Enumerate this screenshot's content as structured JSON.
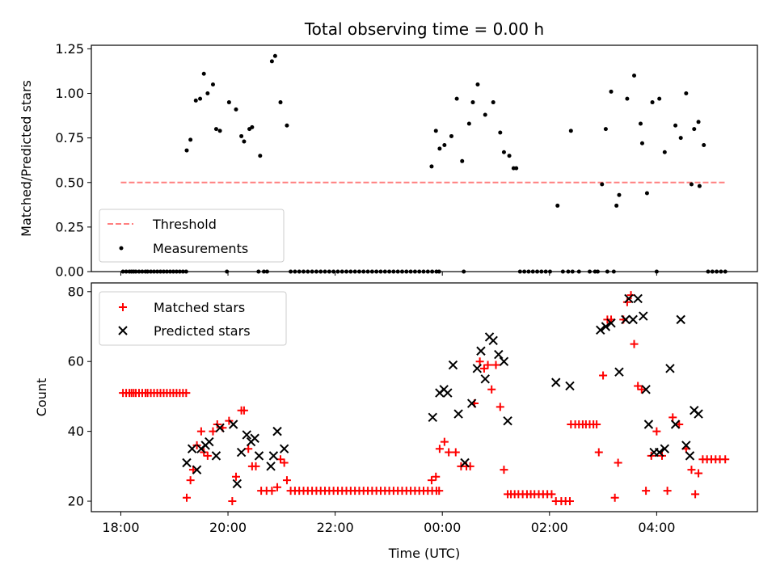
{
  "title": "Total observing time = 0.00 h",
  "shared_x": {
    "label": "Time (UTC)",
    "min_hours": -0.55,
    "max_hours": 11.88,
    "ticks": [
      {
        "hours": 0,
        "label": "18:00"
      },
      {
        "hours": 2,
        "label": "20:00"
      },
      {
        "hours": 4,
        "label": "22:00"
      },
      {
        "hours": 6,
        "label": "00:00"
      },
      {
        "hours": 8,
        "label": "02:00"
      },
      {
        "hours": 10,
        "label": "04:00"
      }
    ]
  },
  "chart_data": [
    {
      "type": "scatter",
      "ylabel": "Matched/Predicted stars",
      "ylim": [
        0,
        1.27
      ],
      "yticks": [
        0.0,
        0.25,
        0.5,
        0.75,
        1.0,
        1.25
      ],
      "ytick_labels": [
        "0.00",
        "0.25",
        "0.50",
        "0.75",
        "1.00",
        "1.25"
      ],
      "legend_position": "lower-left",
      "threshold": {
        "name": "Threshold",
        "value": 0.5,
        "x_range": [
          0,
          11.3
        ],
        "color": "#ff7f7f"
      },
      "series": [
        {
          "name": "Measurements",
          "color": "#000000",
          "marker": "dot",
          "x": [
            0.04,
            0.1,
            0.16,
            0.2,
            0.24,
            0.28,
            0.34,
            0.4,
            0.46,
            0.5,
            0.56,
            0.62,
            0.68,
            0.74,
            0.8,
            0.86,
            0.92,
            0.98,
            1.04,
            1.1,
            1.16,
            1.22,
            1.23,
            1.3,
            1.4,
            1.48,
            1.55,
            1.62,
            1.72,
            1.78,
            1.85,
            2.02,
            2.15,
            2.25,
            2.3,
            2.4,
            2.45,
            2.6,
            2.82,
            2.88,
            2.98,
            3.1,
            1.98,
            2.57,
            2.67,
            2.73,
            3.17,
            3.25,
            3.33,
            3.41,
            3.49,
            3.57,
            3.65,
            3.73,
            3.81,
            3.89,
            3.97,
            4.05,
            4.13,
            4.21,
            4.29,
            4.37,
            4.45,
            4.53,
            4.61,
            4.69,
            4.77,
            4.85,
            4.93,
            5.01,
            5.09,
            5.17,
            5.25,
            5.33,
            5.41,
            5.49,
            5.57,
            5.65,
            5.73,
            5.81,
            5.89,
            5.94,
            5.8,
            5.88,
            5.95,
            6.04,
            6.17,
            6.27,
            6.37,
            6.5,
            6.57,
            6.66,
            6.8,
            6.95,
            7.08,
            7.15,
            7.25,
            7.33,
            7.38,
            6.4,
            7.45,
            7.53,
            7.61,
            7.69,
            7.77,
            7.85,
            7.93,
            8.01,
            8.15,
            8.4,
            8.98,
            9.05,
            9.15,
            9.25,
            9.3,
            9.45,
            9.58,
            9.7,
            9.73,
            9.82,
            9.92,
            10.05,
            10.15,
            10.35,
            10.45,
            10.55,
            10.65,
            10.7,
            10.78,
            8.25,
            8.35,
            8.43,
            8.55,
            8.75,
            8.85,
            8.9,
            9.08,
            9.2,
            10.0,
            10.8,
            10.88,
            10.96,
            11.04,
            11.12,
            11.2,
            11.28
          ],
          "y": [
            0,
            0,
            0,
            0,
            0,
            0,
            0,
            0,
            0,
            0,
            0,
            0,
            0,
            0,
            0,
            0,
            0,
            0,
            0,
            0,
            0,
            0,
            0.68,
            0.74,
            0.96,
            0.97,
            1.11,
            1.0,
            1.05,
            0.8,
            0.79,
            0.95,
            0.91,
            0.76,
            0.73,
            0.8,
            0.81,
            0.65,
            1.18,
            1.21,
            0.95,
            0.82,
            0,
            0,
            0,
            0,
            0,
            0,
            0,
            0,
            0,
            0,
            0,
            0,
            0,
            0,
            0,
            0,
            0,
            0,
            0,
            0,
            0,
            0,
            0,
            0,
            0,
            0,
            0,
            0,
            0,
            0,
            0,
            0,
            0,
            0,
            0,
            0,
            0,
            0,
            0,
            0,
            0.59,
            0.79,
            0.69,
            0.71,
            0.76,
            0.97,
            0.62,
            0.83,
            0.95,
            1.05,
            0.88,
            0.95,
            0.78,
            0.67,
            0.65,
            0.58,
            0.58,
            0,
            0,
            0,
            0,
            0,
            0,
            0,
            0,
            0,
            0.37,
            0.79,
            0.49,
            0.8,
            1.01,
            0.37,
            0.43,
            0.97,
            1.1,
            0.83,
            0.72,
            0.44,
            0.95,
            0.97,
            0.67,
            0.82,
            0.75,
            1.0,
            0.49,
            0.8,
            0.84,
            0,
            0,
            0,
            0,
            0,
            0,
            0,
            0,
            0,
            0,
            0.48,
            0.71,
            0,
            0,
            0,
            0,
            0
          ]
        }
      ]
    },
    {
      "type": "scatter",
      "ylabel": "Count",
      "ylim": [
        17.0,
        82.5
      ],
      "yticks": [
        20,
        40,
        60,
        80
      ],
      "ytick_labels": [
        "20",
        "40",
        "60",
        "80"
      ],
      "legend_position": "top-left",
      "series": [
        {
          "name": "Matched stars",
          "color": "#ff0000",
          "marker": "plus",
          "x": [
            0.04,
            0.1,
            0.16,
            0.2,
            0.24,
            0.28,
            0.34,
            0.4,
            0.46,
            0.5,
            0.56,
            0.62,
            0.68,
            0.74,
            0.8,
            0.86,
            0.92,
            0.98,
            1.04,
            1.1,
            1.16,
            1.22,
            1.23,
            1.3,
            1.35,
            1.42,
            1.5,
            1.55,
            1.62,
            1.72,
            1.8,
            1.9,
            2.02,
            2.08,
            2.15,
            2.25,
            2.3,
            2.38,
            2.45,
            2.52,
            2.62,
            2.72,
            2.82,
            2.92,
            2.98,
            3.05,
            3.1,
            3.17,
            3.25,
            3.33,
            3.41,
            3.49,
            3.57,
            3.65,
            3.73,
            3.81,
            3.89,
            3.97,
            4.05,
            4.13,
            4.21,
            4.29,
            4.37,
            4.45,
            4.53,
            4.61,
            4.69,
            4.77,
            4.85,
            4.93,
            5.01,
            5.09,
            5.17,
            5.25,
            5.33,
            5.41,
            5.49,
            5.57,
            5.65,
            5.73,
            5.81,
            5.89,
            5.94,
            5.8,
            5.88,
            5.95,
            6.04,
            6.12,
            6.25,
            6.35,
            6.45,
            6.52,
            6.6,
            6.7,
            6.78,
            6.85,
            6.92,
            7.0,
            7.08,
            7.15,
            7.22,
            7.28,
            7.35,
            7.42,
            7.5,
            7.58,
            7.65,
            7.72,
            7.8,
            7.88,
            7.96,
            8.04,
            8.12,
            8.22,
            8.3,
            8.38,
            8.4,
            8.48,
            8.55,
            8.62,
            8.68,
            8.75,
            8.82,
            8.88,
            8.92,
            9.0,
            9.08,
            9.15,
            9.22,
            9.28,
            9.38,
            9.45,
            9.52,
            9.58,
            9.65,
            9.72,
            9.8,
            9.9,
            10.0,
            10.1,
            10.2,
            10.3,
            10.42,
            10.55,
            10.65,
            10.72,
            10.78,
            10.86,
            10.94,
            11.02,
            11.1,
            11.18,
            11.28
          ],
          "y": [
            51,
            51,
            51,
            51,
            51,
            51,
            51,
            51,
            51,
            51,
            51,
            51,
            51,
            51,
            51,
            51,
            51,
            51,
            51,
            51,
            51,
            51,
            21,
            26,
            29,
            36,
            40,
            34,
            33,
            40,
            42,
            41,
            43,
            20,
            27,
            46,
            46,
            35,
            30,
            30,
            23,
            23,
            23,
            24,
            32,
            31,
            26,
            23,
            23,
            23,
            23,
            23,
            23,
            23,
            23,
            23,
            23,
            23,
            23,
            23,
            23,
            23,
            23,
            23,
            23,
            23,
            23,
            23,
            23,
            23,
            23,
            23,
            23,
            23,
            23,
            23,
            23,
            23,
            23,
            23,
            23,
            23,
            23,
            26,
            27,
            35,
            37,
            34,
            34,
            30,
            30,
            30,
            48,
            60,
            58,
            59,
            52,
            59,
            47,
            29,
            22,
            22,
            22,
            22,
            22,
            22,
            22,
            22,
            22,
            22,
            22,
            22,
            20,
            20,
            20,
            20,
            42,
            42,
            42,
            42,
            42,
            42,
            42,
            42,
            34,
            56,
            72,
            72,
            21,
            31,
            72,
            77,
            79,
            65,
            53,
            52,
            23,
            33,
            40,
            33,
            23,
            44,
            42,
            35,
            29,
            22,
            28,
            32,
            32,
            32,
            32,
            32,
            32
          ]
        },
        {
          "name": "Predicted stars",
          "color": "#000000",
          "marker": "cross",
          "x": [
            1.23,
            1.33,
            1.42,
            1.5,
            1.58,
            1.65,
            1.78,
            1.85,
            2.1,
            2.17,
            2.25,
            2.35,
            2.43,
            2.5,
            2.58,
            2.8,
            2.85,
            2.92,
            3.05,
            5.82,
            5.95,
            6.03,
            6.1,
            6.2,
            6.3,
            6.42,
            6.55,
            6.65,
            6.72,
            6.8,
            6.88,
            6.95,
            7.05,
            7.15,
            7.22,
            8.12,
            8.38,
            8.95,
            9.05,
            9.15,
            9.3,
            9.42,
            9.48,
            9.56,
            9.65,
            9.75,
            9.8,
            9.85,
            9.95,
            10.05,
            10.15,
            10.25,
            10.35,
            10.45,
            10.55,
            10.62,
            10.7,
            10.78
          ],
          "y": [
            31,
            35,
            29,
            35,
            36,
            37,
            33,
            41,
            42,
            25,
            34,
            39,
            37,
            38,
            33,
            30,
            33,
            40,
            35,
            44,
            51,
            52,
            51,
            59,
            45,
            31,
            48,
            58,
            63,
            55,
            67,
            66,
            62,
            60,
            43,
            54,
            53,
            69,
            70,
            71,
            57,
            72,
            78,
            72,
            78,
            73,
            52,
            42,
            34,
            34,
            35,
            58,
            42,
            72,
            36,
            33,
            46,
            45
          ]
        }
      ]
    }
  ]
}
